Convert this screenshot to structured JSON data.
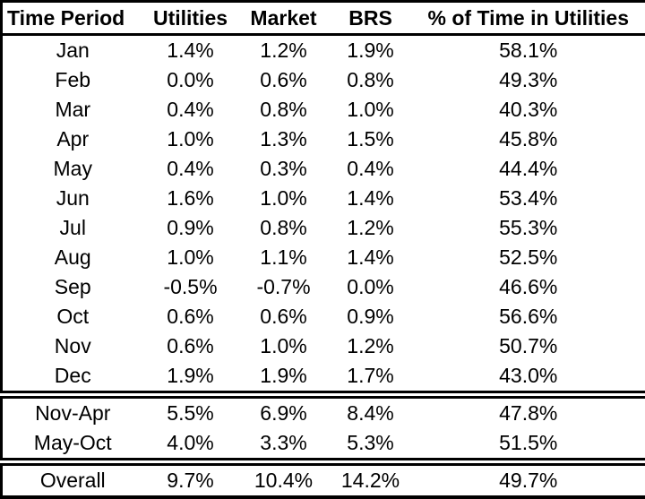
{
  "colors": {
    "text": "#000000",
    "border": "#000000",
    "background": "#ffffff"
  },
  "chart_data": {
    "type": "table",
    "columns": [
      "Time Period",
      "Utilities",
      "Market",
      "BRS",
      "% of Time in Utilities"
    ],
    "sections": {
      "monthly_row_indices": [
        0,
        11
      ],
      "seasonal_row_indices": [
        12,
        13
      ],
      "overall_row_index": 14
    },
    "rows": [
      [
        "Jan",
        "1.4%",
        "1.2%",
        "1.9%",
        "58.1%"
      ],
      [
        "Feb",
        "0.0%",
        "0.6%",
        "0.8%",
        "49.3%"
      ],
      [
        "Mar",
        "0.4%",
        "0.8%",
        "1.0%",
        "40.3%"
      ],
      [
        "Apr",
        "1.0%",
        "1.3%",
        "1.5%",
        "45.8%"
      ],
      [
        "May",
        "0.4%",
        "0.3%",
        "0.4%",
        "44.4%"
      ],
      [
        "Jun",
        "1.6%",
        "1.0%",
        "1.4%",
        "53.4%"
      ],
      [
        "Jul",
        "0.9%",
        "0.8%",
        "1.2%",
        "55.3%"
      ],
      [
        "Aug",
        "1.0%",
        "1.1%",
        "1.4%",
        "52.5%"
      ],
      [
        "Sep",
        "-0.5%",
        "-0.7%",
        "0.0%",
        "46.6%"
      ],
      [
        "Oct",
        "0.6%",
        "0.6%",
        "0.9%",
        "56.6%"
      ],
      [
        "Nov",
        "0.6%",
        "1.0%",
        "1.2%",
        "50.7%"
      ],
      [
        "Dec",
        "1.9%",
        "1.9%",
        "1.7%",
        "43.0%"
      ],
      [
        "Nov-Apr",
        "5.5%",
        "6.9%",
        "8.4%",
        "47.8%"
      ],
      [
        "May-Oct",
        "4.0%",
        "3.3%",
        "5.3%",
        "51.5%"
      ],
      [
        "Overall",
        "9.7%",
        "10.4%",
        "14.2%",
        "49.7%"
      ]
    ]
  }
}
